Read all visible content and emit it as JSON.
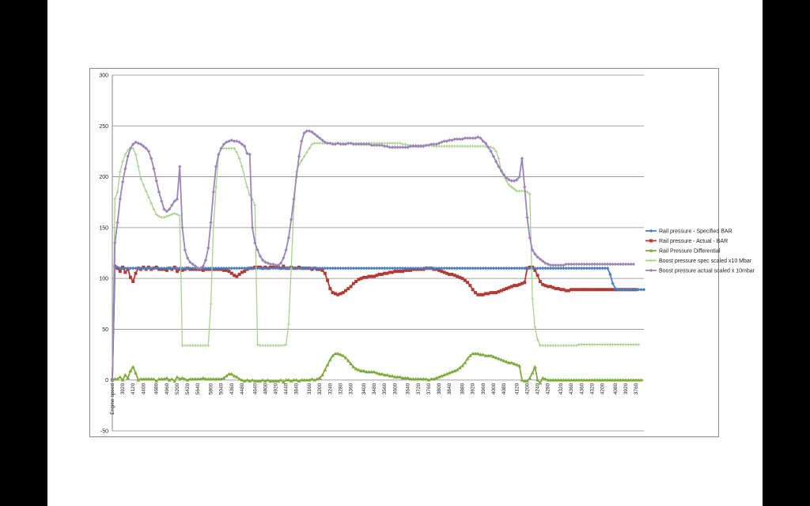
{
  "chart_data": {
    "type": "line",
    "title": "",
    "xlabel": "",
    "ylabel": "",
    "ylim": [
      -50,
      300
    ],
    "yticks": [
      -50,
      0,
      50,
      100,
      150,
      200,
      250,
      300
    ],
    "grid": true,
    "legend_position": "right",
    "first_category_label": "Engine speed",
    "x_tick_labels": [
      "3920",
      "4120",
      "4400",
      "4680",
      "4960",
      "5200",
      "5420",
      "5640",
      "5800",
      "5040",
      "4360",
      "4480",
      "4640",
      "4800",
      "4920",
      "4440",
      "3840",
      "3160",
      "3200",
      "3240",
      "3280",
      "3360",
      "3400",
      "3480",
      "3560",
      "3600",
      "3640",
      "3720",
      "3760",
      "3800",
      "3840",
      "3880",
      "3920",
      "3960",
      "4000",
      "4080",
      "4120",
      "4200",
      "4240",
      "4280",
      "4320",
      "4360",
      "4360",
      "4320",
      "4200",
      "4080",
      "3920",
      "3760"
    ],
    "series": [
      {
        "name": "Rail pressure - Specified BAR",
        "color": "#4a7ebf",
        "marker": "diamond",
        "values": [
          0,
          111,
          111,
          110,
          110,
          110,
          110,
          110,
          110,
          110,
          110,
          110,
          110,
          110,
          110,
          110,
          110,
          110,
          110,
          110,
          110,
          110,
          110,
          110,
          110,
          110,
          110,
          110,
          110,
          110,
          110,
          110,
          110,
          110,
          110,
          110,
          110,
          110,
          110,
          110,
          110,
          110,
          110,
          110,
          110,
          110,
          110,
          110,
          110,
          110,
          110,
          110,
          110,
          110,
          110,
          110,
          110,
          110,
          110,
          110,
          110,
          110,
          110,
          110,
          110,
          110,
          110,
          110,
          110,
          110,
          110,
          110,
          110,
          110,
          110,
          110,
          110,
          110,
          110,
          110,
          110,
          110,
          110,
          110,
          110,
          110,
          110,
          110,
          110,
          110,
          110,
          110,
          110,
          110,
          110,
          110,
          110,
          110,
          110,
          110,
          110,
          110,
          110,
          110,
          110,
          110,
          110,
          110,
          110,
          110,
          110,
          110,
          110,
          110,
          110,
          110,
          110,
          110,
          110,
          110,
          110,
          110,
          110,
          110,
          110,
          110,
          110,
          110,
          110,
          110,
          110,
          110,
          110,
          110,
          110,
          110,
          110,
          110,
          110,
          110,
          110,
          110,
          110,
          110,
          110,
          110,
          110,
          110,
          110,
          110,
          110,
          110,
          110,
          110,
          110,
          110,
          110,
          110,
          110,
          110,
          110,
          110,
          110,
          110,
          110,
          110,
          110,
          110,
          110,
          110,
          110,
          110,
          110,
          110,
          110,
          110,
          110,
          110,
          110,
          110,
          110,
          110,
          110,
          110,
          110,
          110,
          110,
          110,
          110,
          110,
          110,
          110,
          104,
          95,
          90,
          89,
          89,
          89,
          89,
          89,
          89,
          89,
          89,
          89,
          89,
          89
        ]
      },
      {
        "name": "Rail pressure - Actual - BAR",
        "color": "#b03a35",
        "marker": "square",
        "values": [
          0,
          112,
          110,
          107,
          111,
          106,
          109,
          101,
          97,
          105,
          110,
          109,
          111,
          109,
          111,
          109,
          110,
          111,
          109,
          109,
          109,
          108,
          110,
          109,
          111,
          107,
          109,
          108,
          109,
          110,
          109,
          109,
          109,
          109,
          109,
          108,
          109,
          109,
          109,
          109,
          109,
          109,
          109,
          108,
          108,
          107,
          105,
          103,
          102,
          104,
          106,
          107,
          109,
          110,
          110,
          111,
          111,
          111,
          110,
          111,
          110,
          111,
          111,
          111,
          111,
          110,
          112,
          110,
          110,
          111,
          110,
          110,
          111,
          110,
          110,
          110,
          110,
          109,
          110,
          109,
          109,
          108,
          105,
          98,
          90,
          86,
          85,
          84,
          85,
          86,
          88,
          90,
          92,
          95,
          97,
          99,
          100,
          101,
          101,
          102,
          102,
          102,
          103,
          104,
          104,
          105,
          105,
          106,
          106,
          107,
          107,
          107,
          107,
          108,
          108,
          108,
          109,
          109,
          109,
          109,
          109,
          110,
          110,
          110,
          109,
          109,
          108,
          107,
          106,
          105,
          104,
          104,
          103,
          102,
          101,
          100,
          98,
          96,
          93,
          89,
          86,
          84,
          84,
          84,
          85,
          85,
          86,
          86,
          86,
          87,
          88,
          89,
          90,
          91,
          92,
          93,
          93,
          94,
          95,
          96,
          110,
          111,
          111,
          108,
          103,
          97,
          94,
          93,
          92,
          92,
          91,
          90,
          90,
          89,
          89,
          88,
          88,
          89,
          89,
          89,
          89,
          89,
          89,
          89,
          89,
          89,
          89,
          89,
          89,
          89,
          89,
          89,
          89,
          89,
          89,
          89,
          89,
          89,
          89,
          89,
          89,
          89,
          89
        ]
      },
      {
        "name": "Rail Pressure Differential",
        "color": "#7fab3b",
        "marker": "triangle",
        "values": [
          0,
          1,
          1,
          3,
          0,
          5,
          2,
          9,
          13,
          7,
          0,
          1,
          1,
          1,
          1,
          1,
          1,
          -1,
          1,
          1,
          1,
          2,
          0,
          1,
          -1,
          3,
          1,
          2,
          1,
          0,
          1,
          1,
          1,
          1,
          1,
          2,
          1,
          1,
          1,
          1,
          1,
          1,
          1,
          2,
          4,
          6,
          6,
          4,
          3,
          1,
          0,
          -1,
          0,
          -1,
          0,
          -1,
          -1,
          -1,
          0,
          -1,
          0,
          -1,
          -1,
          -1,
          -1,
          0,
          -2,
          0,
          0,
          -1,
          0,
          0,
          -1,
          0,
          0,
          0,
          0,
          1,
          0,
          1,
          2,
          5,
          10,
          15,
          20,
          24,
          26,
          26,
          25,
          24,
          22,
          19,
          16,
          13,
          11,
          10,
          9,
          9,
          8,
          8,
          8,
          8,
          7,
          6,
          6,
          5,
          5,
          4,
          4,
          3,
          3,
          3,
          2,
          2,
          2,
          1,
          1,
          1,
          1,
          1,
          1,
          1,
          0,
          1,
          1,
          2,
          3,
          4,
          5,
          6,
          7,
          8,
          9,
          10,
          12,
          14,
          17,
          21,
          24,
          26,
          26,
          26,
          25,
          25,
          24,
          24,
          24,
          23,
          22,
          21,
          20,
          19,
          18,
          17,
          17,
          16,
          15,
          14,
          0,
          -1,
          -1,
          2,
          7,
          13,
          0,
          -3,
          2,
          1,
          0,
          0,
          0,
          0,
          0,
          0,
          0,
          0,
          0,
          0,
          0,
          0,
          0,
          0,
          0,
          0,
          0,
          0,
          0,
          0,
          0,
          0,
          0,
          0,
          0,
          0,
          0,
          0,
          0,
          0,
          0,
          0,
          0,
          0,
          0,
          0,
          0
        ]
      },
      {
        "name": "Boost pressure spec scaled x10 Mbar",
        "color": "#a9d18e",
        "marker": "plus",
        "values": [
          0,
          178,
          185,
          205,
          215,
          222,
          226,
          228,
          228,
          222,
          210,
          198,
          192,
          186,
          180,
          174,
          168,
          163,
          161,
          160,
          160,
          161,
          162,
          163,
          164,
          163,
          162,
          34,
          34,
          34,
          34,
          34,
          34,
          34,
          34,
          34,
          34,
          34,
          75,
          150,
          190,
          222,
          228,
          228,
          228,
          228,
          228,
          228,
          224,
          218,
          210,
          200,
          190,
          182,
          178,
          172,
          35,
          34,
          34,
          34,
          34,
          34,
          34,
          34,
          34,
          34,
          34,
          35,
          55,
          110,
          170,
          205,
          212,
          216,
          220,
          224,
          228,
          232,
          233,
          233,
          233,
          233,
          233,
          233,
          233,
          233,
          233,
          233,
          233,
          233,
          233,
          233,
          233,
          233,
          233,
          233,
          233,
          233,
          233,
          233,
          233,
          233,
          233,
          233,
          233,
          233,
          233,
          233,
          233,
          233,
          233,
          233,
          232,
          232,
          231,
          231,
          231,
          231,
          231,
          231,
          231,
          231,
          231,
          231,
          230,
          230,
          230,
          230,
          230,
          230,
          230,
          230,
          230,
          230,
          230,
          230,
          230,
          230,
          230,
          230,
          230,
          230,
          230,
          230,
          230,
          229,
          229,
          228,
          225,
          218,
          205,
          200,
          196,
          192,
          190,
          188,
          186,
          186,
          186,
          186,
          185,
          183,
          80,
          52,
          40,
          34,
          34,
          34,
          34,
          34,
          34,
          34,
          34,
          34,
          34,
          34,
          34,
          34,
          34,
          34,
          35,
          35,
          35,
          35,
          35,
          35,
          35,
          35,
          35,
          35,
          35,
          35,
          35,
          35,
          35,
          35,
          35,
          35,
          35,
          35,
          35,
          35,
          35,
          35
        ]
      },
      {
        "name": "Boost pressure actual scaled x 10mbar",
        "color": "#9a86b8",
        "marker": "diamond",
        "values": [
          0,
          135,
          155,
          178,
          195,
          208,
          220,
          228,
          232,
          234,
          233,
          232,
          230,
          228,
          225,
          218,
          208,
          196,
          185,
          176,
          168,
          166,
          168,
          172,
          176,
          178,
          210,
          150,
          128,
          120,
          116,
          114,
          112,
          110,
          110,
          112,
          118,
          130,
          155,
          185,
          210,
          222,
          228,
          232,
          234,
          235,
          236,
          235,
          235,
          234,
          232,
          230,
          223,
          222,
          150,
          135,
          128,
          122,
          118,
          116,
          115,
          114,
          114,
          113,
          113,
          115,
          120,
          128,
          140,
          158,
          178,
          200,
          220,
          235,
          243,
          245,
          245,
          244,
          242,
          240,
          238,
          236,
          234,
          233,
          233,
          232,
          232,
          233,
          232,
          232,
          232,
          233,
          233,
          232,
          232,
          232,
          232,
          232,
          232,
          232,
          231,
          231,
          231,
          231,
          231,
          230,
          230,
          229,
          229,
          229,
          229,
          229,
          229,
          229,
          229,
          230,
          230,
          230,
          230,
          230,
          230,
          231,
          231,
          232,
          232,
          232,
          233,
          234,
          235,
          235,
          236,
          236,
          237,
          237,
          237,
          237,
          238,
          238,
          238,
          238,
          238,
          239,
          238,
          235,
          233,
          229,
          225,
          220,
          215,
          210,
          206,
          202,
          199,
          197,
          196,
          196,
          197,
          200,
          218,
          190,
          160,
          140,
          128,
          124,
          121,
          119,
          117,
          115,
          114,
          113,
          113,
          113,
          113,
          113,
          113,
          114,
          114,
          114,
          114,
          114,
          114,
          114,
          114,
          114,
          114,
          114,
          114,
          114,
          114,
          114,
          114,
          114,
          114,
          114,
          114,
          114,
          114,
          114,
          114,
          114,
          114,
          114
        ]
      }
    ]
  }
}
